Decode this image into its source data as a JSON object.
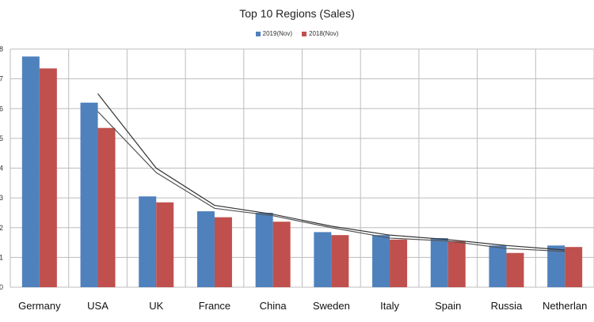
{
  "chart_data": {
    "type": "bar",
    "title": "Top 10 Regions (Sales)",
    "categories": [
      "Germany",
      "USA",
      "UK",
      "France",
      "China",
      "Sweden",
      "Italy",
      "Spain",
      "Russia",
      "Netherlan"
    ],
    "series": [
      {
        "name": "2019(Nov)",
        "color": "#4f81bd",
        "values": [
          7.75,
          6.2,
          3.05,
          2.55,
          2.5,
          1.85,
          1.75,
          1.65,
          1.4,
          1.4
        ]
      },
      {
        "name": "2018(Nov)",
        "color": "#c0504d",
        "values": [
          7.35,
          5.35,
          2.85,
          2.35,
          2.2,
          1.75,
          1.6,
          1.55,
          1.15,
          1.35
        ]
      }
    ],
    "trendlines": [
      {
        "label": "",
        "color": "#333333",
        "values": [
          null,
          6.5,
          4.0,
          2.75,
          2.45,
          2.05,
          1.75,
          1.6,
          1.4,
          1.25
        ]
      },
      {
        "label": "",
        "color": "#555555",
        "values": [
          null,
          5.9,
          3.85,
          2.65,
          2.4,
          2.0,
          1.65,
          1.55,
          1.3,
          1.2
        ]
      }
    ],
    "ylim": [
      0,
      8
    ],
    "ytick_step": 1,
    "grid": true,
    "legend_position": "top-center"
  }
}
